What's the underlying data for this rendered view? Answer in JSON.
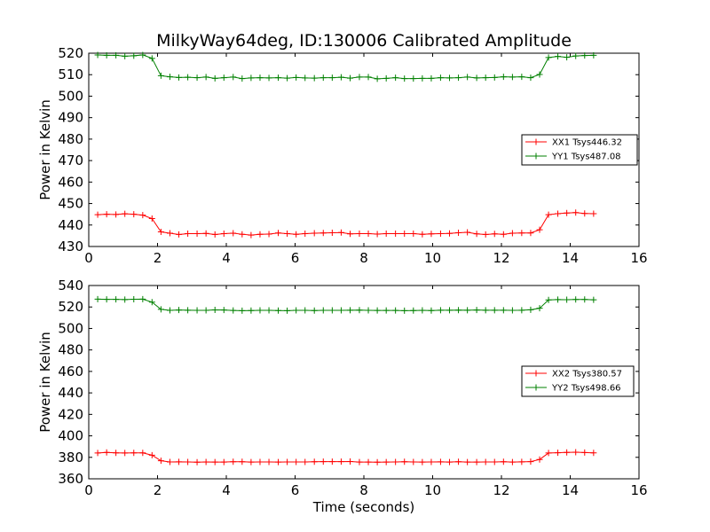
{
  "title": "MilkyWay64deg, ID:130006 Calibrated Amplitude",
  "chart_data": [
    {
      "type": "line",
      "title": "MilkyWay64deg, ID:130006 Calibrated Amplitude",
      "xlabel": "",
      "ylabel": "Power in Kelvin",
      "xlim": [
        0,
        16
      ],
      "ylim": [
        430,
        520
      ],
      "xticks": [
        0,
        2,
        4,
        6,
        8,
        10,
        12,
        14,
        16
      ],
      "yticks": [
        430,
        440,
        450,
        460,
        470,
        480,
        490,
        500,
        510,
        520
      ],
      "grid": false,
      "legend_position": "center-right",
      "x": [
        0.26,
        0.52,
        0.79,
        1.05,
        1.31,
        1.57,
        1.84,
        2.1,
        2.36,
        2.62,
        2.88,
        3.15,
        3.41,
        3.67,
        3.93,
        4.2,
        4.46,
        4.72,
        4.98,
        5.24,
        5.51,
        5.77,
        6.03,
        6.29,
        6.56,
        6.82,
        7.08,
        7.34,
        7.6,
        7.87,
        8.13,
        8.39,
        8.65,
        8.92,
        9.18,
        9.44,
        9.7,
        9.96,
        10.23,
        10.49,
        10.75,
        11.01,
        11.28,
        11.54,
        11.8,
        12.06,
        12.32,
        12.59,
        12.85,
        13.11,
        13.37,
        13.64,
        13.9,
        14.16,
        14.42,
        14.68
      ],
      "series": [
        {
          "name": "XX1 Tsys446.32",
          "color": "#ff0000",
          "values": [
            444.8,
            445.0,
            444.9,
            445.2,
            445.0,
            444.6,
            443.0,
            436.8,
            436.2,
            435.6,
            436.0,
            436.0,
            436.1,
            435.6,
            436.0,
            436.2,
            435.7,
            435.3,
            435.7,
            435.8,
            436.3,
            436.0,
            435.7,
            436.0,
            436.2,
            436.3,
            436.4,
            436.5,
            435.9,
            436.0,
            436.0,
            435.8,
            436.0,
            436.0,
            436.0,
            436.0,
            435.7,
            435.9,
            436.0,
            436.1,
            436.4,
            436.6,
            435.9,
            435.6,
            435.9,
            435.7,
            436.2,
            436.3,
            436.3,
            437.8,
            444.8,
            445.3,
            445.6,
            445.8,
            445.4,
            445.3
          ]
        },
        {
          "name": "YY1 Tsys487.08",
          "color": "#008000",
          "values": [
            519.2,
            519.0,
            519.0,
            518.6,
            518.8,
            519.2,
            517.6,
            509.5,
            509.0,
            508.7,
            508.8,
            508.6,
            508.9,
            508.3,
            508.6,
            508.9,
            508.2,
            508.5,
            508.6,
            508.5,
            508.6,
            508.4,
            508.7,
            508.5,
            508.4,
            508.6,
            508.6,
            508.8,
            508.4,
            508.9,
            508.9,
            508.1,
            508.3,
            508.6,
            508.2,
            508.2,
            508.3,
            508.3,
            508.6,
            508.5,
            508.6,
            508.9,
            508.5,
            508.6,
            508.7,
            509.0,
            508.9,
            509.0,
            508.6,
            510.1,
            518.0,
            518.5,
            518.1,
            518.7,
            518.9,
            519.0
          ]
        }
      ]
    },
    {
      "type": "line",
      "title": "",
      "xlabel": "Time (seconds)",
      "ylabel": "Power in Kelvin",
      "xlim": [
        0,
        16
      ],
      "ylim": [
        360,
        540
      ],
      "xticks": [
        0,
        2,
        4,
        6,
        8,
        10,
        12,
        14,
        16
      ],
      "yticks": [
        360,
        380,
        400,
        420,
        440,
        460,
        480,
        500,
        520,
        540
      ],
      "grid": false,
      "legend_position": "center-right",
      "x": [
        0.26,
        0.52,
        0.79,
        1.05,
        1.31,
        1.57,
        1.84,
        2.1,
        2.36,
        2.62,
        2.88,
        3.15,
        3.41,
        3.67,
        3.93,
        4.2,
        4.46,
        4.72,
        4.98,
        5.24,
        5.51,
        5.77,
        6.03,
        6.29,
        6.56,
        6.82,
        7.08,
        7.34,
        7.6,
        7.87,
        8.13,
        8.39,
        8.65,
        8.92,
        9.18,
        9.44,
        9.7,
        9.96,
        10.23,
        10.49,
        10.75,
        11.01,
        11.28,
        11.54,
        11.8,
        12.06,
        12.32,
        12.59,
        12.85,
        13.11,
        13.37,
        13.64,
        13.9,
        14.16,
        14.42,
        14.68
      ],
      "series": [
        {
          "name": "XX2 Tsys380.57",
          "color": "#ff0000",
          "values": [
            384.0,
            384.6,
            384.2,
            384.0,
            384.2,
            384.1,
            382.0,
            376.8,
            375.7,
            375.8,
            375.7,
            375.5,
            375.7,
            375.6,
            375.6,
            375.9,
            375.9,
            375.6,
            375.7,
            375.7,
            375.6,
            375.7,
            375.7,
            375.7,
            375.9,
            376.0,
            376.0,
            376.0,
            376.1,
            375.6,
            375.6,
            375.5,
            375.6,
            375.7,
            375.9,
            375.7,
            375.6,
            375.7,
            375.8,
            375.6,
            375.9,
            375.6,
            375.6,
            375.7,
            375.7,
            375.9,
            375.6,
            375.8,
            376.0,
            378.0,
            384.0,
            384.3,
            384.6,
            384.8,
            384.5,
            384.2
          ]
        },
        {
          "name": "YY2 Tsys498.66",
          "color": "#008000",
          "values": [
            527.3,
            527.1,
            527.1,
            526.9,
            527.2,
            527.3,
            524.5,
            517.8,
            516.9,
            517.2,
            517.0,
            516.9,
            516.9,
            517.3,
            517.2,
            516.8,
            516.6,
            516.7,
            516.9,
            516.9,
            516.7,
            516.6,
            516.9,
            516.9,
            516.7,
            516.9,
            516.9,
            516.9,
            517.0,
            517.1,
            516.9,
            516.8,
            516.8,
            516.8,
            516.6,
            516.7,
            516.9,
            516.7,
            517.0,
            517.0,
            517.1,
            517.0,
            517.2,
            517.0,
            517.0,
            517.0,
            516.9,
            517.0,
            517.4,
            518.8,
            526.6,
            526.9,
            526.8,
            527.0,
            527.0,
            526.7
          ]
        }
      ]
    }
  ]
}
